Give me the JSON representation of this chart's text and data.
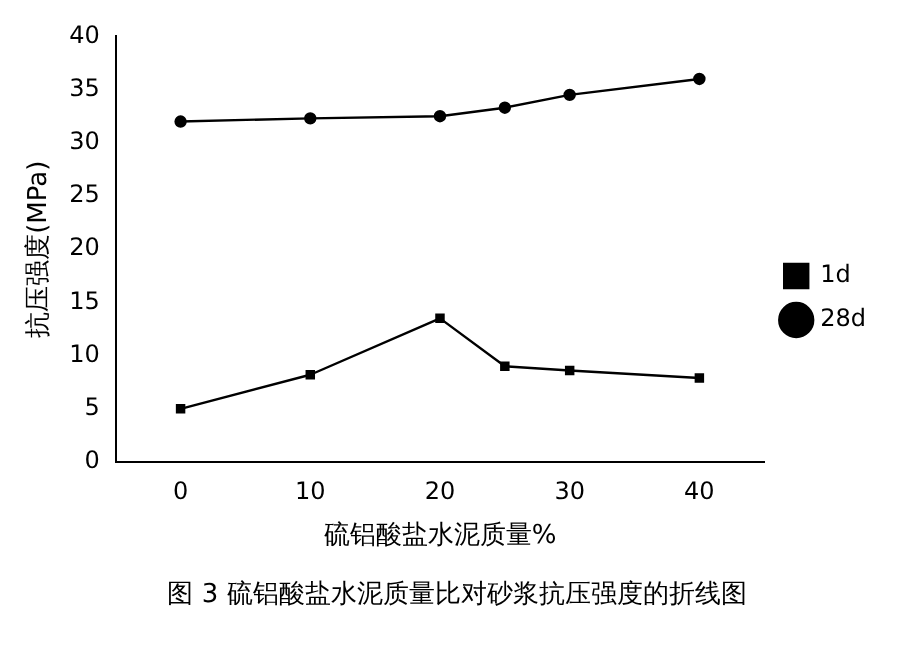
{
  "chart_data": {
    "type": "line",
    "xlabel": "硫铝酸盐水泥质量%",
    "ylabel": "抗压强度(MPa)",
    "x": [
      0,
      10,
      20,
      25,
      30,
      40
    ],
    "series": [
      {
        "name": "1d",
        "color": "#000000",
        "marker": "square",
        "values": [
          5,
          8.2,
          13.5,
          9,
          8.6,
          7.9
        ]
      },
      {
        "name": "28d",
        "color": "#000000",
        "marker": "circle",
        "values": [
          32,
          32.3,
          32.5,
          33.3,
          34.5,
          36
        ]
      }
    ],
    "xlim": [
      -5,
      45
    ],
    "xticks": [
      0,
      10,
      20,
      30,
      40
    ],
    "ylim": [
      0,
      40
    ],
    "yticks": [
      0,
      5,
      10,
      15,
      20,
      25,
      30,
      35,
      40
    ],
    "grid": false,
    "legend": "right",
    "line_style": "solid",
    "annotations": [
      "图 3  硫铝酸盐水泥质量比对砂浆抗压强度的折线图"
    ]
  }
}
